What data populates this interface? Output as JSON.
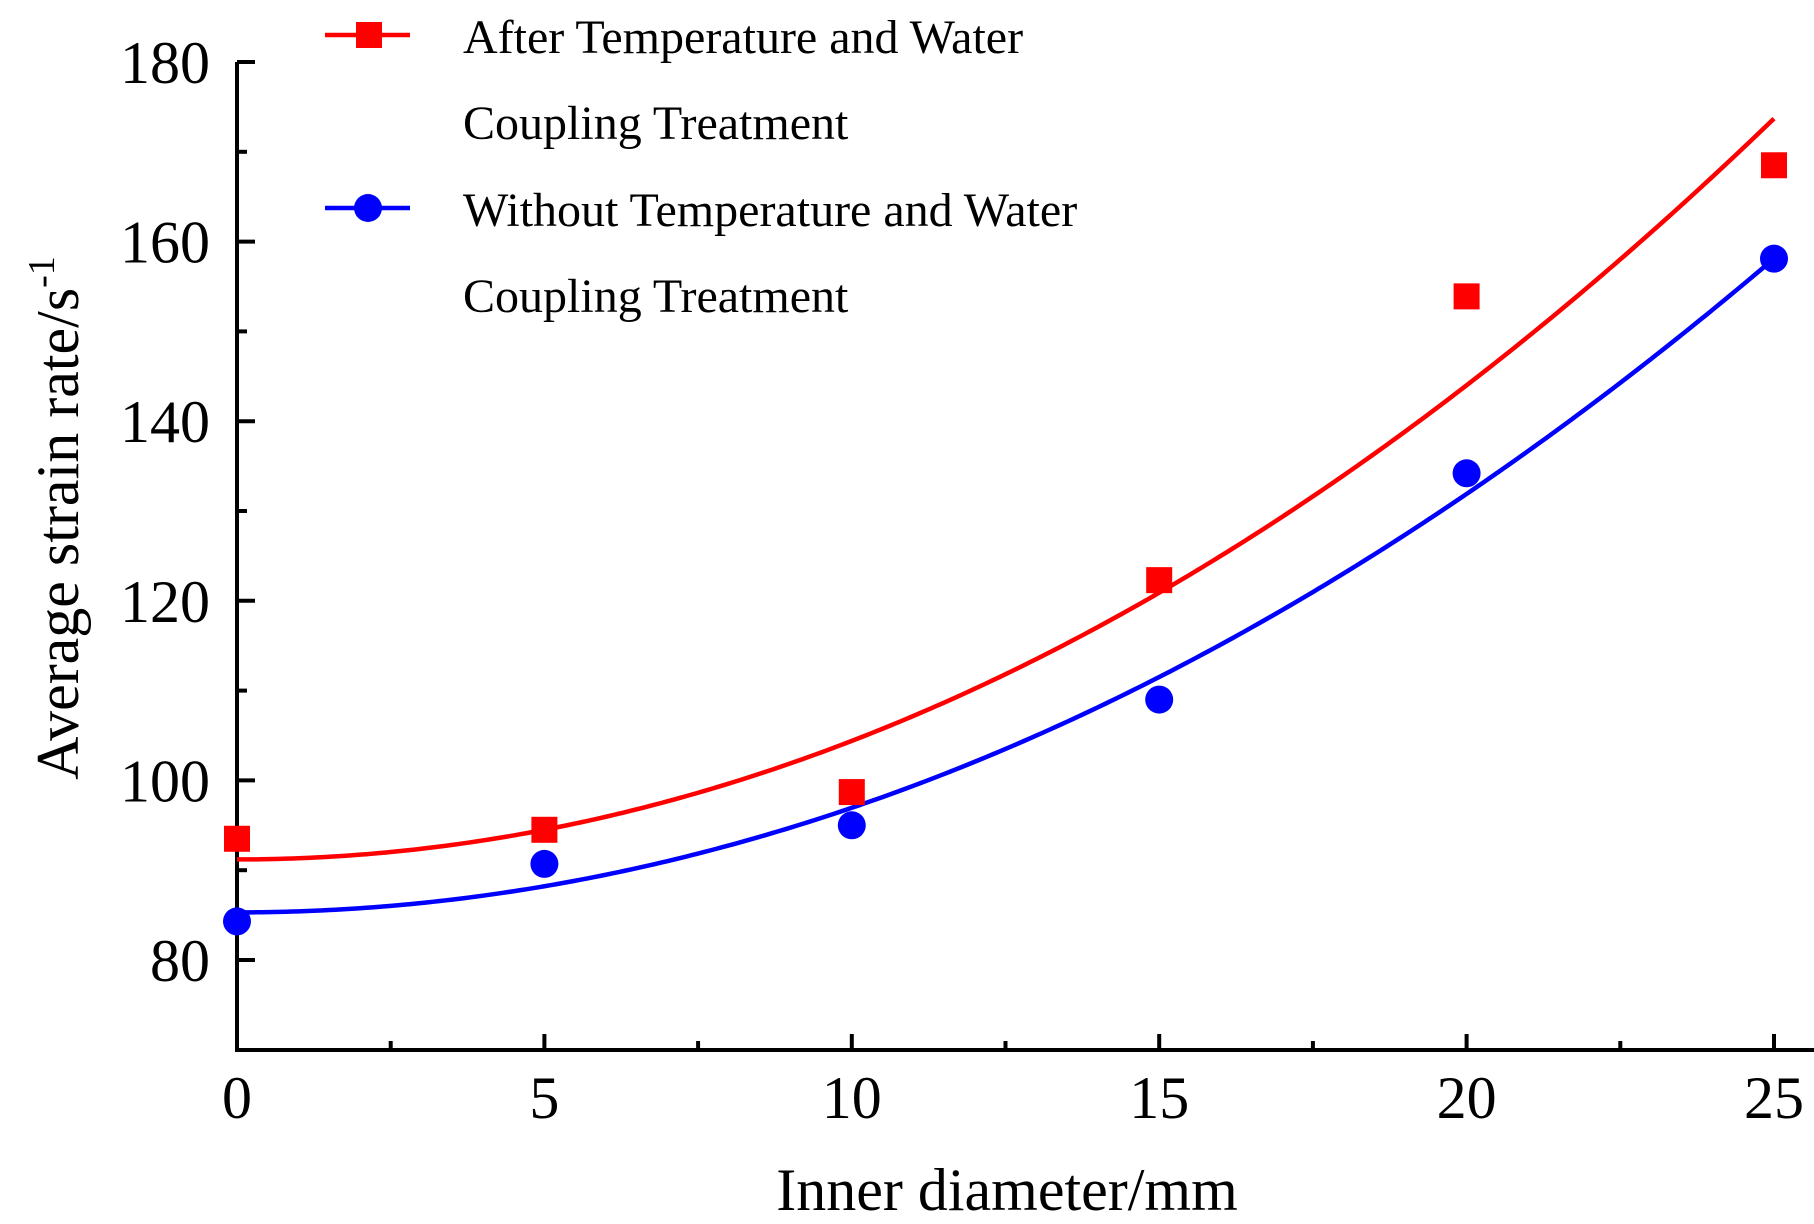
{
  "chart_data": {
    "type": "scatter",
    "xlabel": "Inner diameter/mm",
    "ylabel": "Average strain rate/s",
    "ylabel_superscript": "-1",
    "xlim": [
      0,
      25.7
    ],
    "ylim": [
      70,
      180
    ],
    "xticks": [
      0,
      5,
      10,
      15,
      20,
      25
    ],
    "xtick_labels": [
      "0",
      "5",
      "10",
      "15",
      "20",
      "25"
    ],
    "yticks": [
      80,
      100,
      120,
      140,
      160,
      180
    ],
    "ytick_labels": [
      "80",
      "100",
      "120",
      "140",
      "160",
      "180"
    ],
    "x_minor_ticks": [
      2.5,
      7.5,
      12.5,
      17.5,
      22.5
    ],
    "y_minor_ticks": [
      90,
      110,
      130,
      150,
      170
    ],
    "legend_position": "top-left",
    "series": [
      {
        "name": "After Temperature and Water Coupling Treatment",
        "legend_lines": [
          "After Temperature and Water",
          "Coupling Treatment"
        ],
        "color": "#ff0000",
        "marker": "square",
        "x": [
          0,
          5,
          10,
          15,
          20,
          25
        ],
        "y": [
          93.5,
          94.5,
          98.7,
          122.3,
          153.9,
          168.5
        ],
        "fit": {
          "type": "quadratic",
          "a": 91.2,
          "b": 0.0,
          "c": 0.132
        }
      },
      {
        "name": "Without Temperature and Water Coupling Treatment",
        "legend_lines": [
          "Without Temperature and Water",
          "Coupling Treatment"
        ],
        "color": "#0000ff",
        "marker": "circle",
        "x": [
          0,
          5,
          10,
          15,
          20,
          25
        ],
        "y": [
          84.3,
          90.7,
          95.0,
          109.0,
          134.2,
          158.1
        ],
        "fit": {
          "type": "quadratic",
          "a": 85.3,
          "b": 0.0,
          "c": 0.1165
        }
      }
    ]
  }
}
